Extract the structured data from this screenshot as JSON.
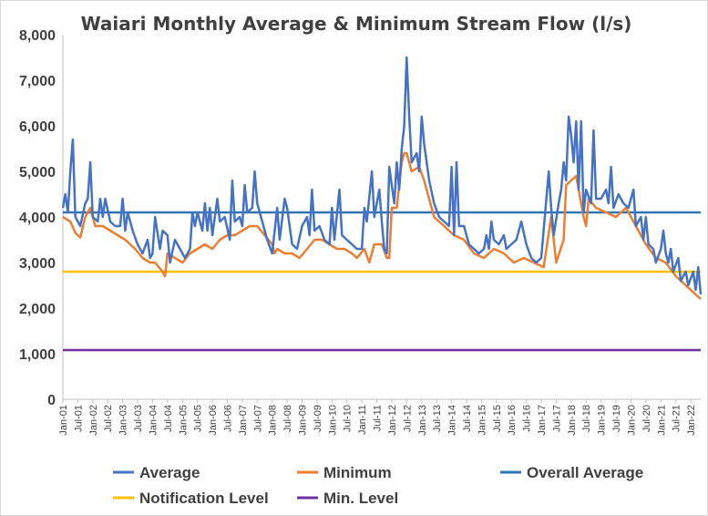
{
  "chart_data": {
    "type": "line",
    "title": "Waiari Monthly Average & Minimum Stream Flow (l/s)",
    "xlabel": "",
    "ylabel": "",
    "ylim": [
      0,
      8000
    ],
    "y_ticks": [
      "0",
      "1,000",
      "2,000",
      "3,000",
      "4,000",
      "5,000",
      "6,000",
      "7,000",
      "8,000"
    ],
    "x_ticks": [
      "Jan-01",
      "Jul-01",
      "Jan-02",
      "Jul-02",
      "Jan-03",
      "Jul-03",
      "Jan-04",
      "Jul-04",
      "Jan-05",
      "Jul-05",
      "Jan-06",
      "Jul-06",
      "Jan-07",
      "Jul-07",
      "Jan-08",
      "Jul-08",
      "Jan-09",
      "Jul-09",
      "Jan-10",
      "Jul-10",
      "Jan-11",
      "Jul-11",
      "Jan-12",
      "Jul-12",
      "Jan-13",
      "Jul-13",
      "Jan-14",
      "Jul-14",
      "Jan-15",
      "Jul-15",
      "Jan-16",
      "Jul-16",
      "Jan-17",
      "Jul-17",
      "Jan-18",
      "Jul-18",
      "Jan-19",
      "Jul-19",
      "Jan-20",
      "Jul-20",
      "Jan-21",
      "Jul-21",
      "Jan-22"
    ],
    "x_range": [
      "Jan-01",
      "May-22"
    ],
    "grid": false,
    "legend_position": "bottom",
    "series": [
      {
        "name": "Average",
        "color": "#4472c4",
        "points": [
          [
            "Jan-01",
            4200
          ],
          [
            "Feb-01",
            4500
          ],
          [
            "Mar-01",
            4100
          ],
          [
            "Apr-01",
            5000
          ],
          [
            "May-01",
            5700
          ],
          [
            "Jun-01",
            4000
          ],
          [
            "Aug-01",
            3800
          ],
          [
            "Oct-01",
            4300
          ],
          [
            "Nov-01",
            4400
          ],
          [
            "Dec-01",
            5200
          ],
          [
            "Jan-02",
            4000
          ],
          [
            "Mar-02",
            3900
          ],
          [
            "Apr-02",
            4400
          ],
          [
            "May-02",
            4000
          ],
          [
            "Jun-02",
            4400
          ],
          [
            "Aug-02",
            3900
          ],
          [
            "Oct-02",
            3800
          ],
          [
            "Dec-02",
            3800
          ],
          [
            "Jan-03",
            4400
          ],
          [
            "Feb-03",
            3700
          ],
          [
            "Mar-03",
            4100
          ],
          [
            "May-03",
            3700
          ],
          [
            "Jul-03",
            3400
          ],
          [
            "Sep-03",
            3200
          ],
          [
            "Nov-03",
            3500
          ],
          [
            "Dec-03",
            3100
          ],
          [
            "Jan-04",
            3200
          ],
          [
            "Feb-04",
            4000
          ],
          [
            "Apr-04",
            3300
          ],
          [
            "May-04",
            3700
          ],
          [
            "Jul-04",
            3600
          ],
          [
            "Aug-04",
            3000
          ],
          [
            "Oct-04",
            3500
          ],
          [
            "Dec-04",
            3300
          ],
          [
            "Feb-05",
            3100
          ],
          [
            "Apr-05",
            3300
          ],
          [
            "May-05",
            4100
          ],
          [
            "Jun-05",
            3800
          ],
          [
            "Jul-05",
            4100
          ],
          [
            "Sep-05",
            3700
          ],
          [
            "Oct-05",
            4300
          ],
          [
            "Nov-05",
            3700
          ],
          [
            "Dec-05",
            4200
          ],
          [
            "Jan-06",
            3600
          ],
          [
            "Mar-06",
            4400
          ],
          [
            "Apr-06",
            3900
          ],
          [
            "Jun-06",
            4000
          ],
          [
            "Aug-06",
            3500
          ],
          [
            "Sep-06",
            4800
          ],
          [
            "Oct-06",
            3900
          ],
          [
            "Dec-06",
            4000
          ],
          [
            "Jan-07",
            3800
          ],
          [
            "Feb-07",
            4700
          ],
          [
            "Mar-07",
            4100
          ],
          [
            "May-07",
            4200
          ],
          [
            "Jun-07",
            5000
          ],
          [
            "Jul-07",
            4300
          ],
          [
            "Sep-07",
            3900
          ],
          [
            "Nov-07",
            3500
          ],
          [
            "Jan-08",
            3200
          ],
          [
            "Mar-08",
            4200
          ],
          [
            "Apr-08",
            3500
          ],
          [
            "Jun-08",
            4400
          ],
          [
            "Jul-08",
            4200
          ],
          [
            "Sep-08",
            3400
          ],
          [
            "Nov-08",
            3300
          ],
          [
            "Jan-09",
            3800
          ],
          [
            "Mar-09",
            4000
          ],
          [
            "Apr-09",
            3600
          ],
          [
            "May-09",
            4600
          ],
          [
            "Jun-09",
            3700
          ],
          [
            "Aug-09",
            3800
          ],
          [
            "Oct-09",
            3500
          ],
          [
            "Dec-09",
            3400
          ],
          [
            "Jan-10",
            4200
          ],
          [
            "Feb-10",
            3500
          ],
          [
            "Apr-10",
            4600
          ],
          [
            "May-10",
            3600
          ],
          [
            "Jul-10",
            3500
          ],
          [
            "Sep-10",
            3400
          ],
          [
            "Nov-10",
            3300
          ],
          [
            "Jan-11",
            3300
          ],
          [
            "Feb-11",
            4200
          ],
          [
            "Mar-11",
            3900
          ],
          [
            "May-11",
            5000
          ],
          [
            "Jun-11",
            4000
          ],
          [
            "Aug-11",
            4600
          ],
          [
            "Sep-11",
            3900
          ],
          [
            "Oct-11",
            3300
          ],
          [
            "Nov-11",
            3200
          ],
          [
            "Dec-11",
            5100
          ],
          [
            "Jan-12",
            4700
          ],
          [
            "Feb-12",
            4300
          ],
          [
            "Mar-12",
            5200
          ],
          [
            "Apr-12",
            4600
          ],
          [
            "May-12",
            5500
          ],
          [
            "Jun-12",
            6000
          ],
          [
            "Jul-12",
            7500
          ],
          [
            "Aug-12",
            6200
          ],
          [
            "Sep-12",
            5200
          ],
          [
            "Oct-12",
            5300
          ],
          [
            "Nov-12",
            5400
          ],
          [
            "Dec-12",
            5000
          ],
          [
            "Jan-13",
            6200
          ],
          [
            "Feb-13",
            5600
          ],
          [
            "Apr-13",
            4800
          ],
          [
            "Jun-13",
            4300
          ],
          [
            "Aug-13",
            4000
          ],
          [
            "Oct-13",
            3900
          ],
          [
            "Dec-13",
            3800
          ],
          [
            "Jan-14",
            5100
          ],
          [
            "Feb-14",
            3600
          ],
          [
            "Mar-14",
            5200
          ],
          [
            "Apr-14",
            3800
          ],
          [
            "Jun-14",
            3800
          ],
          [
            "Aug-14",
            3400
          ],
          [
            "Oct-14",
            3300
          ],
          [
            "Dec-14",
            3200
          ],
          [
            "Feb-15",
            3300
          ],
          [
            "Mar-15",
            3600
          ],
          [
            "Apr-15",
            3300
          ],
          [
            "May-15",
            3900
          ],
          [
            "Jun-15",
            3500
          ],
          [
            "Aug-15",
            3400
          ],
          [
            "Oct-15",
            3600
          ],
          [
            "Nov-15",
            3300
          ],
          [
            "Jan-16",
            3400
          ],
          [
            "Mar-16",
            3500
          ],
          [
            "May-16",
            3900
          ],
          [
            "Jul-16",
            3400
          ],
          [
            "Sep-16",
            3100
          ],
          [
            "Nov-16",
            3000
          ],
          [
            "Jan-17",
            3100
          ],
          [
            "Apr-17",
            5000
          ],
          [
            "May-17",
            4200
          ],
          [
            "Jun-17",
            3600
          ],
          [
            "Aug-17",
            4300
          ],
          [
            "Sep-17",
            4600
          ],
          [
            "Oct-17",
            5200
          ],
          [
            "Nov-17",
            4800
          ],
          [
            "Dec-17",
            6200
          ],
          [
            "Jan-18",
            5800
          ],
          [
            "Feb-18",
            5200
          ],
          [
            "Mar-18",
            6100
          ],
          [
            "Apr-18",
            4600
          ],
          [
            "May-18",
            6100
          ],
          [
            "Jun-18",
            4100
          ],
          [
            "Jul-18",
            4600
          ],
          [
            "Sep-18",
            4300
          ],
          [
            "Oct-18",
            5900
          ],
          [
            "Nov-18",
            4400
          ],
          [
            "Jan-19",
            4400
          ],
          [
            "Mar-19",
            4600
          ],
          [
            "Apr-19",
            4300
          ],
          [
            "May-19",
            5100
          ],
          [
            "Jun-19",
            4200
          ],
          [
            "Aug-19",
            4500
          ],
          [
            "Sep-19",
            4400
          ],
          [
            "Oct-19",
            4300
          ],
          [
            "Dec-19",
            4200
          ],
          [
            "Feb-20",
            4600
          ],
          [
            "Mar-20",
            3800
          ],
          [
            "May-20",
            4000
          ],
          [
            "Jun-20",
            3500
          ],
          [
            "Jul-20",
            4000
          ],
          [
            "Aug-20",
            3400
          ],
          [
            "Oct-20",
            3300
          ],
          [
            "Nov-20",
            3000
          ],
          [
            "Jan-21",
            3300
          ],
          [
            "Feb-21",
            3700
          ],
          [
            "Mar-21",
            3200
          ],
          [
            "Apr-21",
            3000
          ],
          [
            "May-21",
            3300
          ],
          [
            "Jun-21",
            2800
          ],
          [
            "Aug-21",
            3100
          ],
          [
            "Sep-21",
            2600
          ],
          [
            "Nov-21",
            2800
          ],
          [
            "Dec-21",
            2500
          ],
          [
            "Feb-22",
            2800
          ],
          [
            "Mar-22",
            2400
          ],
          [
            "Apr-22",
            2900
          ],
          [
            "May-22",
            2300
          ]
        ]
      },
      {
        "name": "Minimum",
        "color": "#ed7d31",
        "points": [
          [
            "Jan-01",
            4000
          ],
          [
            "Apr-01",
            3900
          ],
          [
            "Jun-01",
            3650
          ],
          [
            "Aug-01",
            3550
          ],
          [
            "Oct-01",
            4000
          ],
          [
            "Dec-01",
            4200
          ],
          [
            "Feb-02",
            3800
          ],
          [
            "May-02",
            3800
          ],
          [
            "Aug-02",
            3700
          ],
          [
            "Nov-02",
            3600
          ],
          [
            "Feb-03",
            3500
          ],
          [
            "Jun-03",
            3300
          ],
          [
            "Sep-03",
            3100
          ],
          [
            "Dec-03",
            3000
          ],
          [
            "Feb-04",
            3000
          ],
          [
            "May-04",
            2800
          ],
          [
            "Jun-04",
            2700
          ],
          [
            "Jul-04",
            3200
          ],
          [
            "Oct-04",
            3100
          ],
          [
            "Jan-05",
            3000
          ],
          [
            "Apr-05",
            3200
          ],
          [
            "Jul-05",
            3300
          ],
          [
            "Oct-05",
            3400
          ],
          [
            "Jan-06",
            3300
          ],
          [
            "Apr-06",
            3500
          ],
          [
            "Jul-06",
            3600
          ],
          [
            "Oct-06",
            3600
          ],
          [
            "Jan-07",
            3700
          ],
          [
            "Apr-07",
            3800
          ],
          [
            "Jul-07",
            3800
          ],
          [
            "Oct-07",
            3600
          ],
          [
            "Jan-08",
            3400
          ],
          [
            "Feb-08",
            3200
          ],
          [
            "Mar-08",
            3300
          ],
          [
            "Jun-08",
            3200
          ],
          [
            "Sep-08",
            3200
          ],
          [
            "Dec-08",
            3100
          ],
          [
            "Mar-09",
            3300
          ],
          [
            "Jun-09",
            3500
          ],
          [
            "Sep-09",
            3500
          ],
          [
            "Dec-09",
            3400
          ],
          [
            "Mar-10",
            3300
          ],
          [
            "Jun-10",
            3300
          ],
          [
            "Sep-10",
            3200
          ],
          [
            "Nov-10",
            3100
          ],
          [
            "Feb-11",
            3300
          ],
          [
            "Apr-11",
            3000
          ],
          [
            "Jun-11",
            3400
          ],
          [
            "Sep-11",
            3400
          ],
          [
            "Nov-11",
            3100
          ],
          [
            "Dec-11",
            3100
          ],
          [
            "Jan-12",
            4200
          ],
          [
            "Mar-12",
            4200
          ],
          [
            "May-12",
            5200
          ],
          [
            "Jun-12",
            5400
          ],
          [
            "Jul-12",
            5400
          ],
          [
            "Sep-12",
            5000
          ],
          [
            "Dec-12",
            5100
          ],
          [
            "Feb-13",
            4800
          ],
          [
            "Jun-13",
            4000
          ],
          [
            "Oct-13",
            3800
          ],
          [
            "Feb-14",
            3600
          ],
          [
            "Jun-14",
            3500
          ],
          [
            "Oct-14",
            3200
          ],
          [
            "Feb-15",
            3100
          ],
          [
            "Jun-15",
            3300
          ],
          [
            "Oct-15",
            3200
          ],
          [
            "Feb-16",
            3000
          ],
          [
            "Jun-16",
            3100
          ],
          [
            "Oct-16",
            3000
          ],
          [
            "Feb-17",
            2900
          ],
          [
            "May-17",
            4000
          ],
          [
            "Jul-17",
            3000
          ],
          [
            "Oct-17",
            3500
          ],
          [
            "Nov-17",
            4700
          ],
          [
            "Jan-18",
            4800
          ],
          [
            "Mar-18",
            4900
          ],
          [
            "May-18",
            4300
          ],
          [
            "Jun-18",
            4000
          ],
          [
            "Jul-18",
            3800
          ],
          [
            "Aug-18",
            4400
          ],
          [
            "Nov-18",
            4200
          ],
          [
            "Mar-19",
            4100
          ],
          [
            "Jul-19",
            4000
          ],
          [
            "Nov-19",
            4200
          ],
          [
            "Mar-20",
            3800
          ],
          [
            "Jul-20",
            3400
          ],
          [
            "Nov-20",
            3100
          ],
          [
            "Mar-21",
            3000
          ],
          [
            "Jul-21",
            2700
          ],
          [
            "Nov-21",
            2500
          ],
          [
            "Mar-22",
            2300
          ],
          [
            "May-22",
            2200
          ]
        ]
      },
      {
        "name": "Overall Average",
        "color": "#2e75b6",
        "constant": 4100
      },
      {
        "name": "Notification Level",
        "color": "#ffc000",
        "constant": 2800
      },
      {
        "name": "Min. Level",
        "color": "#7030a0",
        "constant": 1080
      }
    ]
  }
}
